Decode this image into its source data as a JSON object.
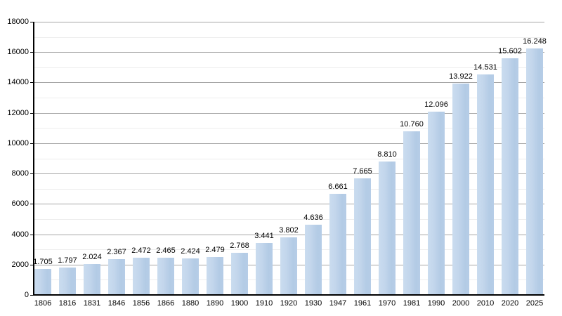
{
  "chart_data": {
    "type": "bar",
    "title": "",
    "xlabel": "",
    "ylabel": "",
    "categories": [
      "1806",
      "1816",
      "1831",
      "1846",
      "1856",
      "1866",
      "1880",
      "1890",
      "1900",
      "1910",
      "1920",
      "1930",
      "1947",
      "1961",
      "1970",
      "1981",
      "1990",
      "2000",
      "2010",
      "2020",
      "2025"
    ],
    "values": [
      1705,
      1797,
      2024,
      2367,
      2472,
      2465,
      2424,
      2479,
      2768,
      3441,
      3802,
      4636,
      6661,
      7665,
      8810,
      10760,
      12096,
      13922,
      14531,
      15602,
      16248
    ],
    "bar_labels": [
      "1.705",
      "1.797",
      "2.024",
      "2.367",
      "2.472",
      "2.465",
      "2.424",
      "2.479",
      "2.768",
      "3.441",
      "3.802",
      "4.636",
      "6.661",
      "7.665",
      "8.810",
      "10.760",
      "12.096",
      "13.922",
      "14.531",
      "15.602",
      "16.248"
    ],
    "ylim": [
      0,
      18000
    ],
    "ytick_step": 2000,
    "minor_ytick_step": 1000,
    "yticks": [
      "0",
      "2000",
      "4000",
      "6000",
      "8000",
      "10000",
      "12000",
      "14000",
      "16000",
      "18000"
    ],
    "grid": true,
    "legend": false,
    "colors": {
      "bar_fill": "#b4cce6",
      "bar_highlight": "#cadcef",
      "grid_major": "#a6a6a6",
      "grid_minor": "#ededed",
      "axis": "#000000",
      "text": "#000000",
      "background": "#ffffff"
    }
  }
}
